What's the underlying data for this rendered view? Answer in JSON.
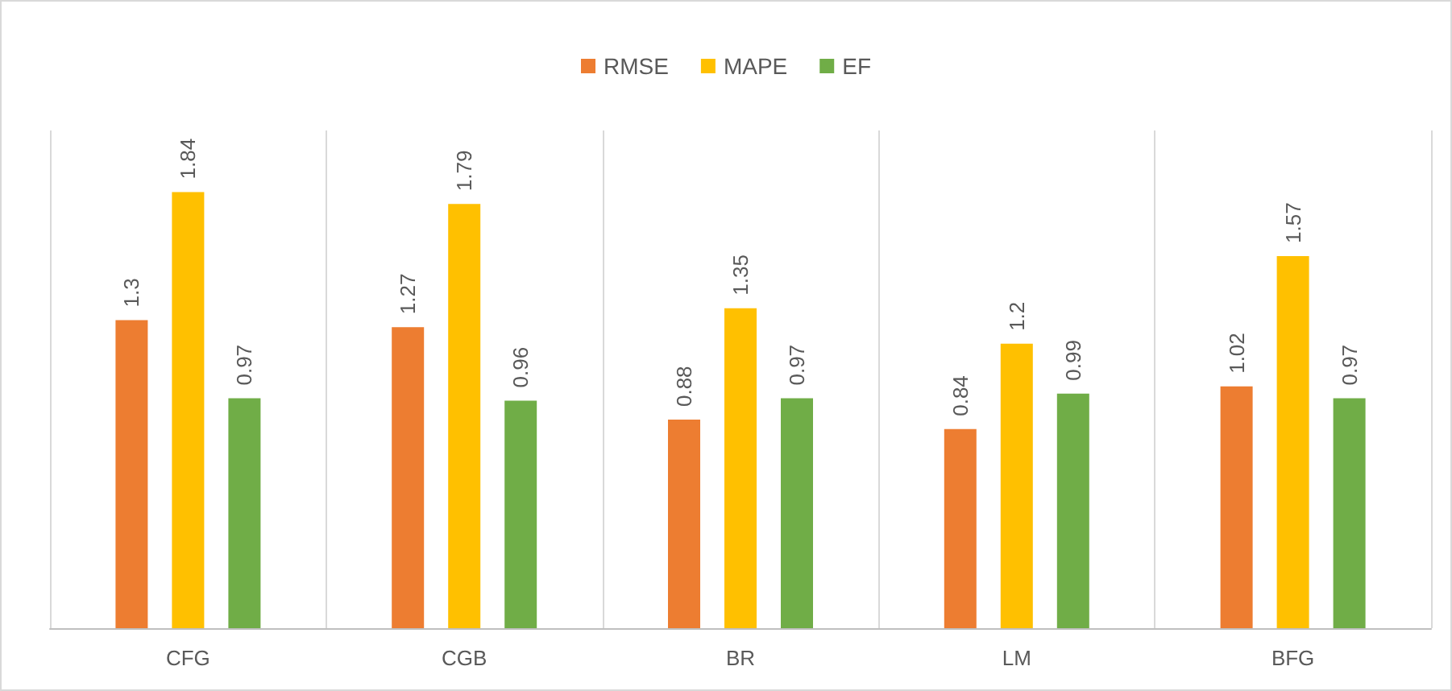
{
  "chart_data": {
    "type": "bar",
    "categories": [
      "CFG",
      "CGB",
      "BR",
      "LM",
      "BFG"
    ],
    "series": [
      {
        "name": "RMSE",
        "color": "#ed7d31",
        "values": [
          1.3,
          1.27,
          0.88,
          0.84,
          1.02
        ]
      },
      {
        "name": "MAPE",
        "color": "#ffc000",
        "values": [
          1.84,
          1.79,
          1.35,
          1.2,
          1.57
        ]
      },
      {
        "name": "EF",
        "color": "#70ad47",
        "values": [
          0.97,
          0.96,
          0.97,
          0.99,
          0.97
        ]
      }
    ],
    "data_labels": true,
    "grid": "x",
    "legend": "top"
  }
}
